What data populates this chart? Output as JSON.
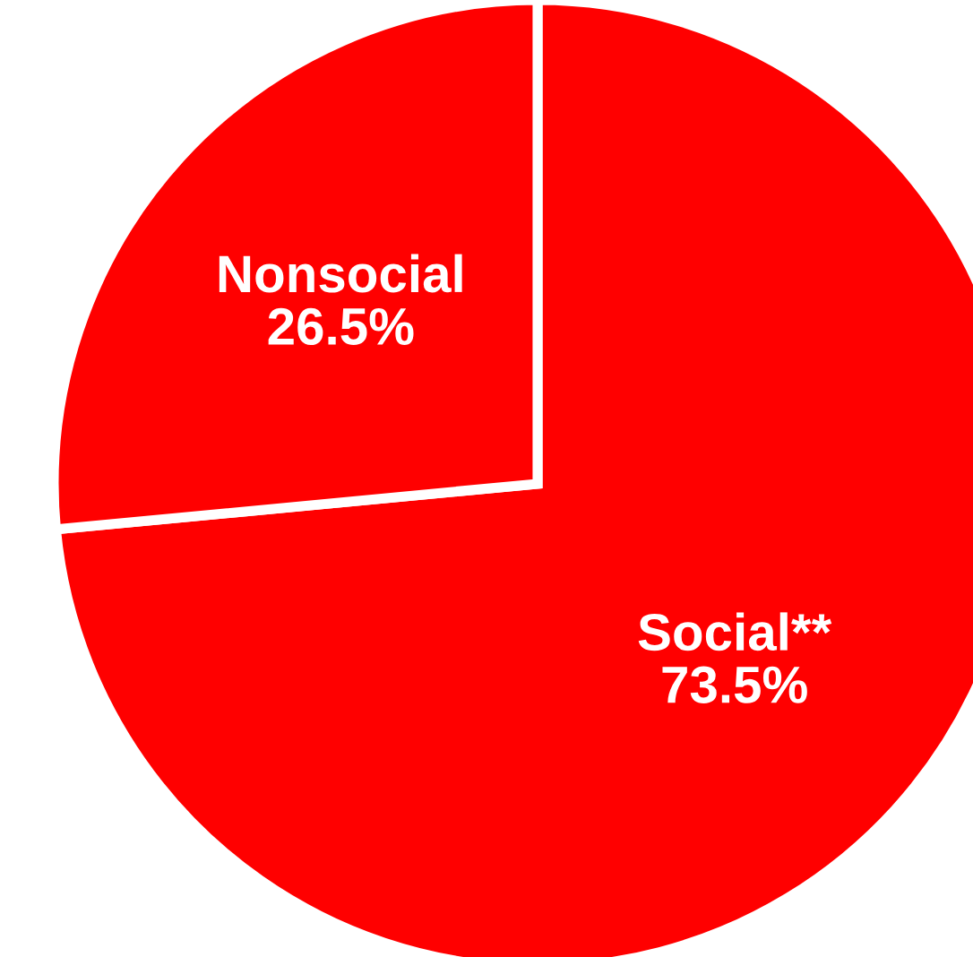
{
  "chart_data": {
    "type": "pie",
    "categories": [
      "Social**",
      "Nonsocial"
    ],
    "values": [
      73.5,
      26.5
    ],
    "colors": [
      "#ff0000",
      "#ff0000"
    ],
    "value_labels": [
      "73.5%",
      "26.5%"
    ]
  }
}
